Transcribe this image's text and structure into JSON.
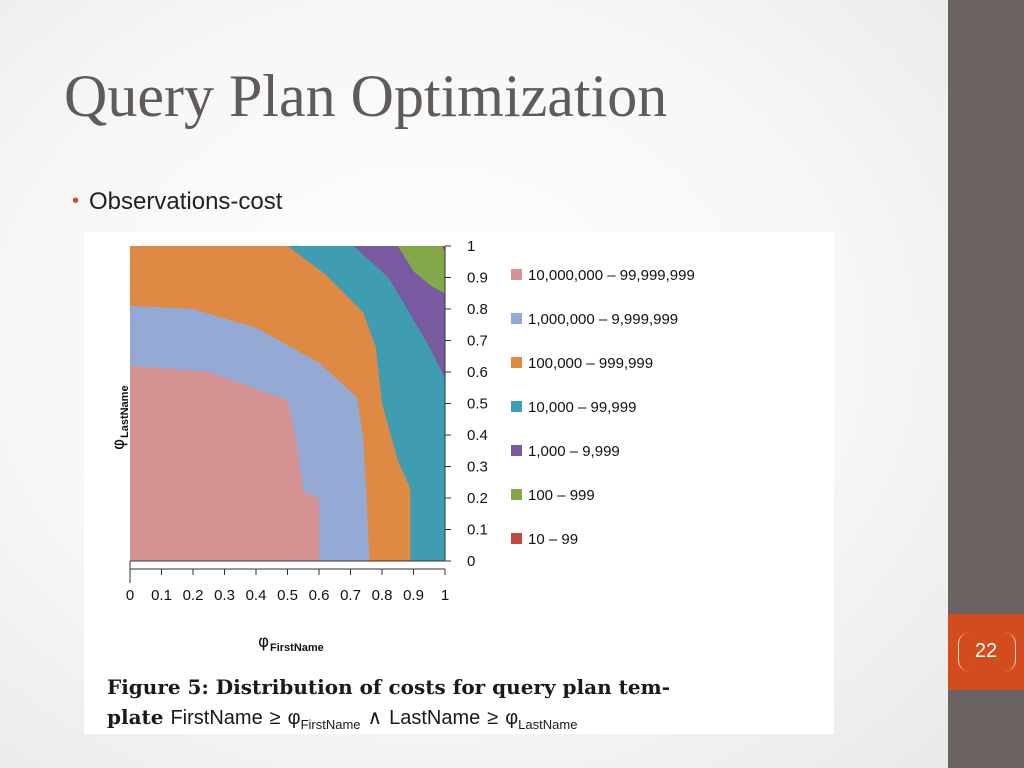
{
  "slide": {
    "title": "Query Plan Optimization",
    "bullet": "Observations-cost",
    "page_number": "22",
    "colors": {
      "accent": "#d24c1e",
      "side_bar": "#6b6361",
      "title": "#605b58"
    }
  },
  "caption": {
    "line1": "Figure 5:  Distribution of costs for query plan tem-",
    "line2_prefix": "plate ",
    "var1": "FirstName",
    "ge": "≥",
    "phi": "φ",
    "sub1": "FirstName",
    "and": "∧",
    "var2": "LastName",
    "sub2": "LastName"
  },
  "chart_data": {
    "type": "heatmap",
    "xlabel": "φ",
    "xlabel_sub": "FirstName",
    "ylabel": "φ",
    "ylabel_sub": "LastName",
    "xlim": [
      0,
      1
    ],
    "ylim": [
      0,
      1
    ],
    "x_ticks": [
      "0",
      "0.1",
      "0.2",
      "0.3",
      "0.4",
      "0.5",
      "0.6",
      "0.7",
      "0.8",
      "0.9",
      "1"
    ],
    "y_ticks": [
      "0",
      "0.1",
      "0.2",
      "0.3",
      "0.4",
      "0.5",
      "0.6",
      "0.7",
      "0.8",
      "0.9",
      "1"
    ],
    "legend_position": "right",
    "bands": [
      {
        "name": "10,000,000 – 99,999,999",
        "color": "#d49292",
        "boundary": [
          [
            0,
            0.62
          ],
          [
            0.25,
            0.6
          ],
          [
            0.5,
            0.51
          ],
          [
            0.53,
            0.37
          ],
          [
            0.55,
            0.22
          ],
          [
            0.6,
            0.2
          ],
          [
            0.6,
            0
          ]
        ]
      },
      {
        "name": "1,000,000 – 9,999,999",
        "color": "#94a9d3",
        "boundary": [
          [
            0,
            0.81
          ],
          [
            0.2,
            0.8
          ],
          [
            0.4,
            0.74
          ],
          [
            0.6,
            0.63
          ],
          [
            0.72,
            0.52
          ],
          [
            0.74,
            0.4
          ],
          [
            0.75,
            0.22
          ],
          [
            0.76,
            0
          ]
        ]
      },
      {
        "name": "100,000 – 999,999",
        "color": "#de8a45",
        "boundary": [
          [
            0,
            1
          ],
          [
            0.5,
            1
          ],
          [
            0.62,
            0.91
          ],
          [
            0.74,
            0.79
          ],
          [
            0.78,
            0.68
          ],
          [
            0.8,
            0.5
          ],
          [
            0.85,
            0.32
          ],
          [
            0.89,
            0.23
          ],
          [
            0.89,
            0
          ]
        ]
      },
      {
        "name": "10,000 – 99,999",
        "color": "#3f9cb1",
        "boundary": [
          [
            0,
            1
          ],
          [
            0.71,
            1
          ],
          [
            0.82,
            0.9
          ],
          [
            0.88,
            0.8
          ],
          [
            0.95,
            0.68
          ],
          [
            1,
            0.58
          ],
          [
            1,
            0
          ]
        ]
      },
      {
        "name": "1,000 – 9,999",
        "color": "#775aa0",
        "boundary": [
          [
            0,
            1
          ],
          [
            0.85,
            1
          ],
          [
            0.9,
            0.92
          ],
          [
            0.96,
            0.87
          ],
          [
            1,
            0.85
          ],
          [
            1,
            0
          ]
        ]
      },
      {
        "name": "100 – 999",
        "color": "#83a84a",
        "boundary": [
          [
            0,
            1
          ],
          [
            0.99,
            1
          ],
          [
            1,
            0.98
          ],
          [
            1,
            0
          ]
        ]
      },
      {
        "name": "10 – 99",
        "color": "#bf4a43",
        "boundary": []
      }
    ]
  }
}
